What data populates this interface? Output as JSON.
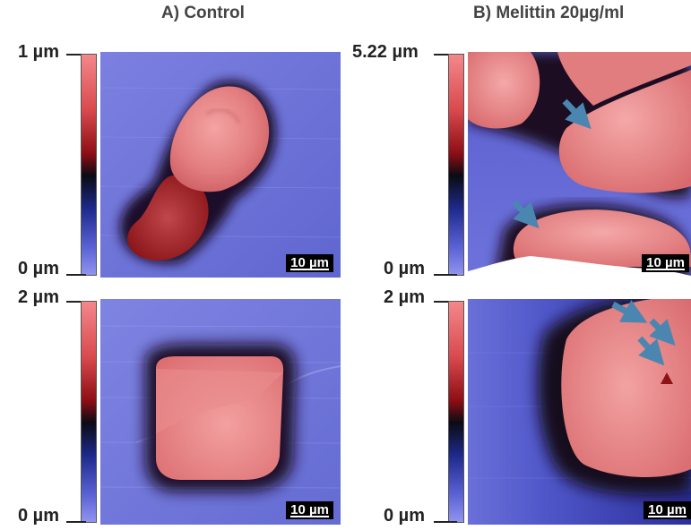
{
  "headers": {
    "a": "A)  Control",
    "b": "B)  Melittin 20µg/ml"
  },
  "colorbars": {
    "a_top": {
      "max": "1 µm",
      "min": "0 µm"
    },
    "b_top": {
      "max": "5.22 µm",
      "min": "0 µm"
    },
    "a_bottom": {
      "max": "2 µm",
      "min": "0 µm"
    },
    "b_bottom": {
      "max": "2 µm",
      "min": "0 µm"
    }
  },
  "scalebar_label": "10 µm",
  "colors": {
    "background_blue": "#6a6fd6",
    "cell_red": "#e98a8a",
    "dark_halo": "#120a18",
    "arrow": "#4a86b0"
  }
}
